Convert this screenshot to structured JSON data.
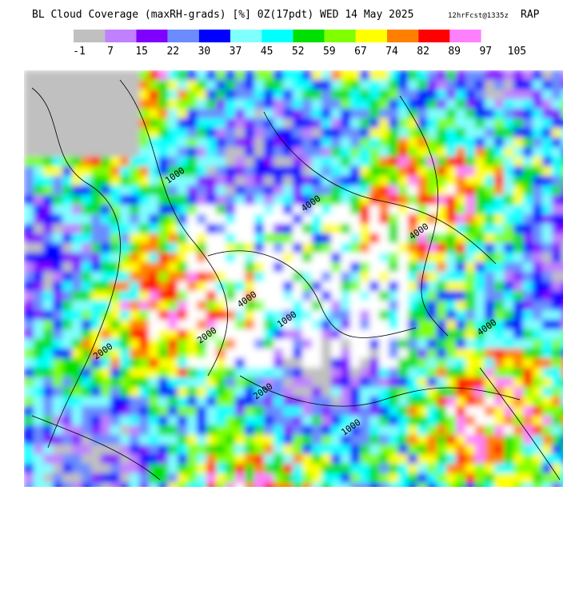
{
  "header": {
    "title": "BL Cloud Coverage (maxRH-grads) [%] 0Z(17pdt) WED 14 May 2025",
    "forecast": "12hrFcst@1335z",
    "model": "RAP"
  },
  "colorbar": {
    "colors": [
      "#c0c0c0",
      "#c080ff",
      "#8000ff",
      "#6a8cff",
      "#0000ff",
      "#80ffff",
      "#00ffff",
      "#00e000",
      "#80ff00",
      "#ffff00",
      "#ff8000",
      "#ff0000",
      "#ff80ff"
    ],
    "labels": [
      -1,
      7,
      15,
      22,
      30,
      37,
      45,
      52,
      59,
      67,
      74,
      82,
      89,
      97,
      105
    ]
  },
  "map": {
    "contour_labels": [
      "4000",
      "2000",
      "1000",
      "4000",
      "2000",
      "4000",
      "1000",
      "2000",
      "4000",
      "1000"
    ]
  }
}
